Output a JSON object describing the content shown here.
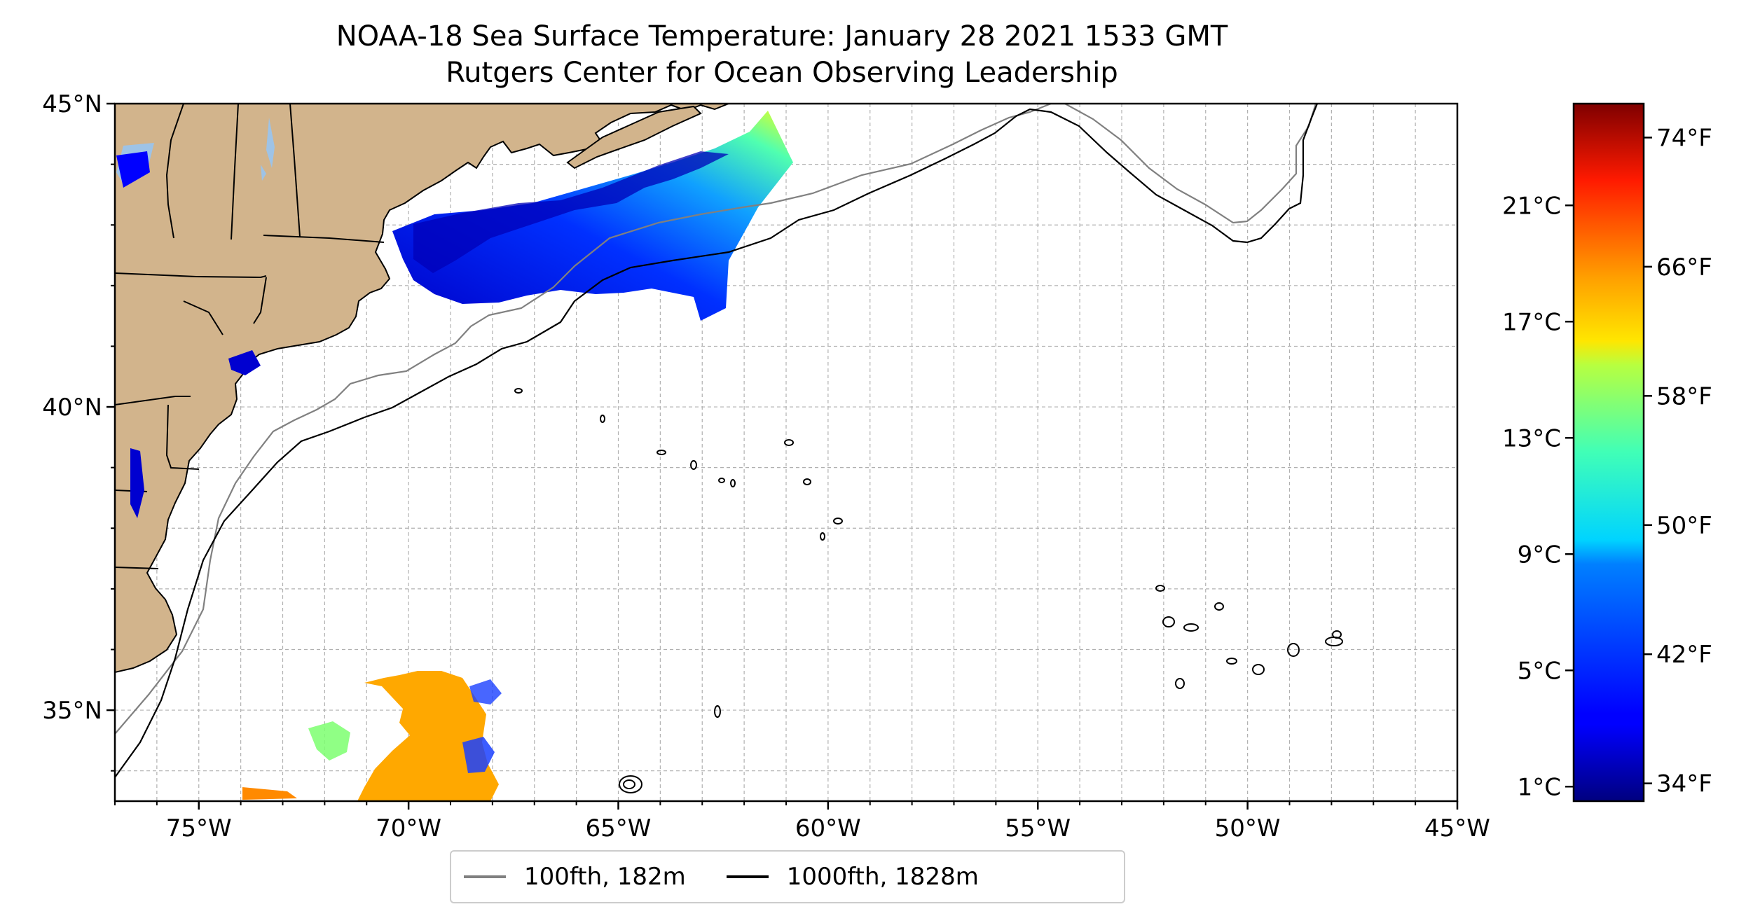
{
  "title": "NOAA-18 Sea Surface Temperature: January 28 2021 1533 GMT",
  "subtitle": "Rutgers Center for Ocean Observing Leadership",
  "map": {
    "extent": {
      "lon_min": -77,
      "lon_max": -45,
      "lat_min": 33.5,
      "lat_max": 45
    },
    "lon_ticks": [
      {
        "value": -75,
        "label": "75°W"
      },
      {
        "value": -70,
        "label": "70°W"
      },
      {
        "value": -65,
        "label": "65°W"
      },
      {
        "value": -60,
        "label": "60°W"
      },
      {
        "value": -55,
        "label": "55°W"
      },
      {
        "value": -50,
        "label": "50°W"
      },
      {
        "value": -45,
        "label": "45°W"
      }
    ],
    "lat_ticks": [
      {
        "value": 45,
        "label": "45°N"
      },
      {
        "value": 40,
        "label": "40°N"
      },
      {
        "value": 35,
        "label": "35°N"
      }
    ],
    "gridlines": true,
    "land_color": "#d2b48c",
    "lake_color": "#9ec3e6",
    "colormap": "jet",
    "sst_range_c": [
      0.5,
      24.5
    ]
  },
  "colorbar": {
    "celsius_ticks": [
      {
        "value": 1,
        "label": "1°C"
      },
      {
        "value": 5,
        "label": "5°C"
      },
      {
        "value": 9,
        "label": "9°C"
      },
      {
        "value": 13,
        "label": "13°C"
      },
      {
        "value": 17,
        "label": "17°C"
      },
      {
        "value": 21,
        "label": "21°C"
      }
    ],
    "fahrenheit_ticks": [
      {
        "value": 34,
        "label": "34°F"
      },
      {
        "value": 42,
        "label": "42°F"
      },
      {
        "value": 50,
        "label": "50°F"
      },
      {
        "value": 58,
        "label": "58°F"
      },
      {
        "value": 66,
        "label": "66°F"
      },
      {
        "value": 74,
        "label": "74°F"
      }
    ]
  },
  "legend": {
    "items": [
      {
        "label": "100fth, 182m",
        "color": "#808080"
      },
      {
        "label": "1000fth, 1828m",
        "color": "#000000"
      }
    ]
  }
}
